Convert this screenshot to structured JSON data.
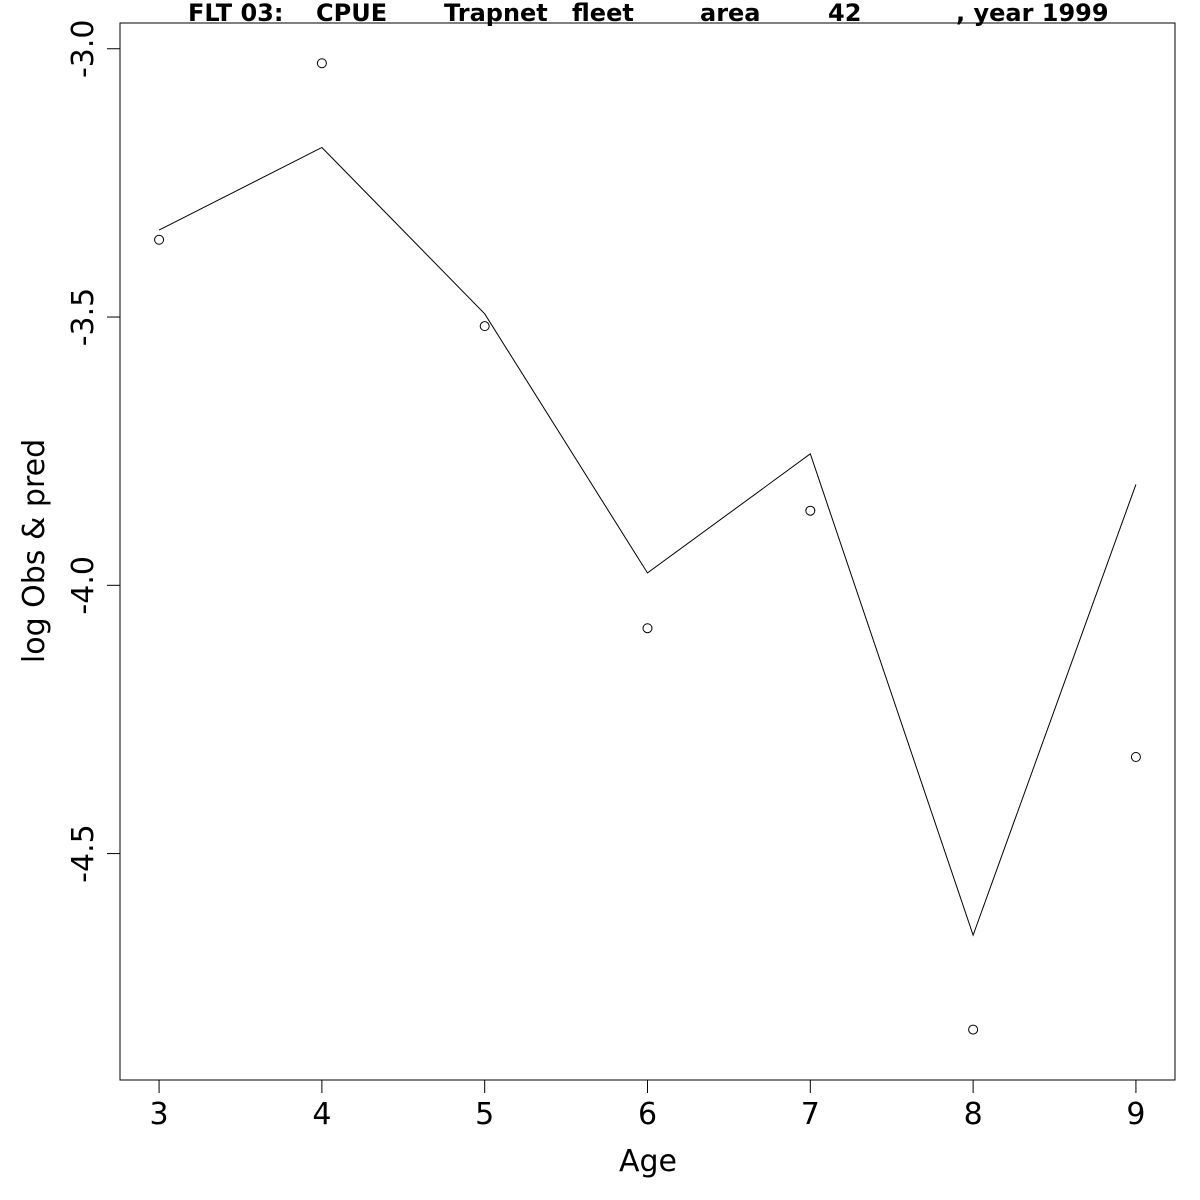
{
  "chart_data": {
    "type": "line",
    "title_parts": [
      "FLT 03:",
      "CPUE",
      "Trapnet",
      "fleet",
      "area",
      "42",
      ", year 1999"
    ],
    "xlabel": "Age",
    "ylabel": "log Obs & pred",
    "x": [
      3,
      4,
      5,
      6,
      7,
      8,
      9
    ],
    "x_ticks": [
      3,
      4,
      5,
      6,
      7,
      8,
      9
    ],
    "x_tick_labels": [
      "3",
      "4",
      "5",
      "6",
      "7",
      "8",
      "9"
    ],
    "y_ticks": [
      -3.0,
      -3.5,
      -4.0,
      -4.5
    ],
    "y_tick_labels": [
      "-3.0",
      "-3.5",
      "-4.0",
      "-4.5"
    ],
    "xlim": [
      2.76,
      9.24
    ],
    "ylim": [
      -4.922,
      -2.952
    ],
    "series": [
      {
        "style": "line",
        "values": [
          -3.338,
          -3.184,
          -3.494,
          -3.977,
          -3.755,
          -4.652,
          -3.812
        ]
      },
      {
        "style": "points",
        "values": [
          -3.356,
          -3.027,
          -3.517,
          -4.08,
          -3.861,
          -4.828,
          -4.32
        ]
      }
    ],
    "grid": false,
    "legend": "none"
  }
}
